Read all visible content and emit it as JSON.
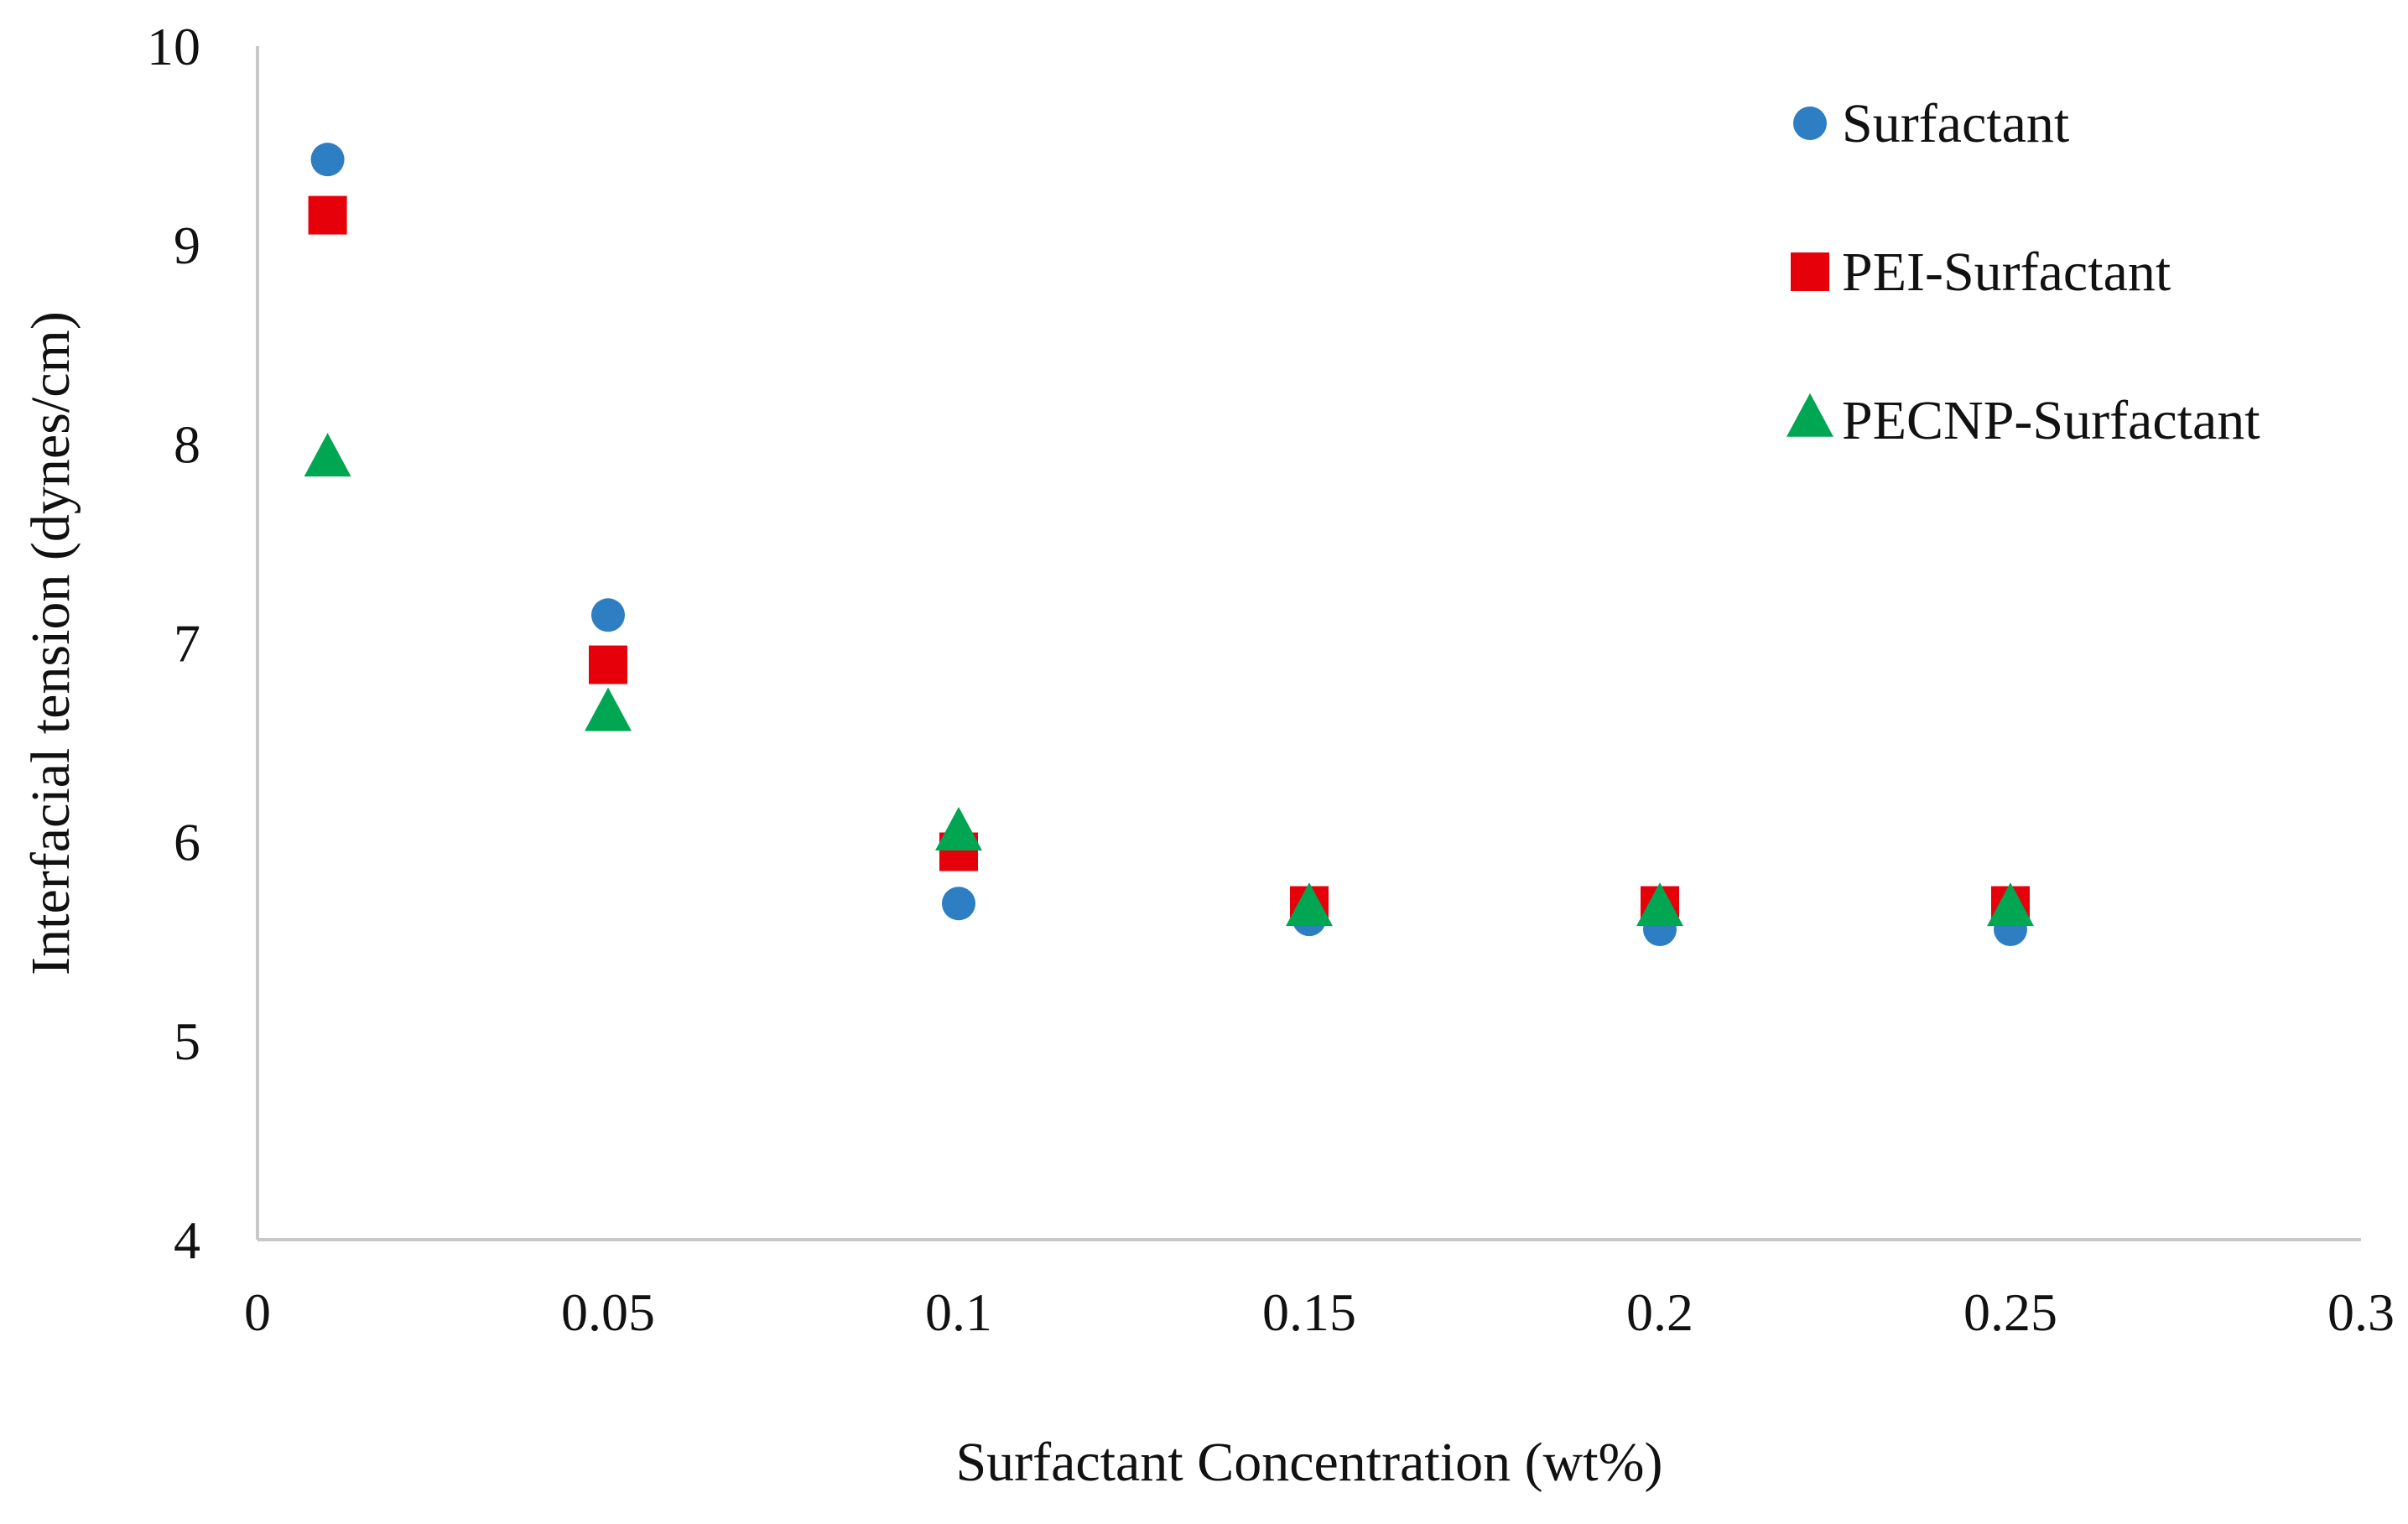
{
  "chart_data": {
    "type": "scatter",
    "title": "",
    "xlabel": "Surfactant Concentration (wt%)",
    "ylabel": "Interfacial tension (dynes/cm)",
    "xlim": [
      0,
      0.3
    ],
    "ylim": [
      4,
      10
    ],
    "x_ticks": [
      0,
      0.05,
      0.1,
      0.15,
      0.2,
      0.25,
      0.3
    ],
    "x_tick_labels": [
      "0",
      "0.05",
      "0.1",
      "0.15",
      "0.2",
      "0.25",
      "0.3"
    ],
    "y_ticks": [
      4,
      5,
      6,
      7,
      8,
      9,
      10
    ],
    "y_tick_labels": [
      "4",
      "5",
      "6",
      "7",
      "8",
      "9",
      "10"
    ],
    "grid": false,
    "legend_position": "top-right",
    "series": [
      {
        "name": "Surfactant",
        "marker": "circle",
        "color": "#2E7EC3",
        "x": [
          0.01,
          0.05,
          0.1,
          0.15,
          0.2,
          0.25
        ],
        "y": [
          9.43,
          7.14,
          5.69,
          5.61,
          5.56,
          5.56
        ]
      },
      {
        "name": "PEI-Surfactant",
        "marker": "square",
        "color": "#E6000A",
        "x": [
          0.01,
          0.05,
          0.1,
          0.15,
          0.2,
          0.25
        ],
        "y": [
          9.15,
          6.89,
          5.95,
          5.68,
          5.68,
          5.68
        ]
      },
      {
        "name": "PECNP-Surfactant",
        "marker": "triangle",
        "color": "#00A651",
        "x": [
          0.01,
          0.05,
          0.1,
          0.15,
          0.2,
          0.25
        ],
        "y": [
          7.92,
          6.64,
          6.04,
          5.66,
          5.66,
          5.66
        ]
      }
    ]
  }
}
